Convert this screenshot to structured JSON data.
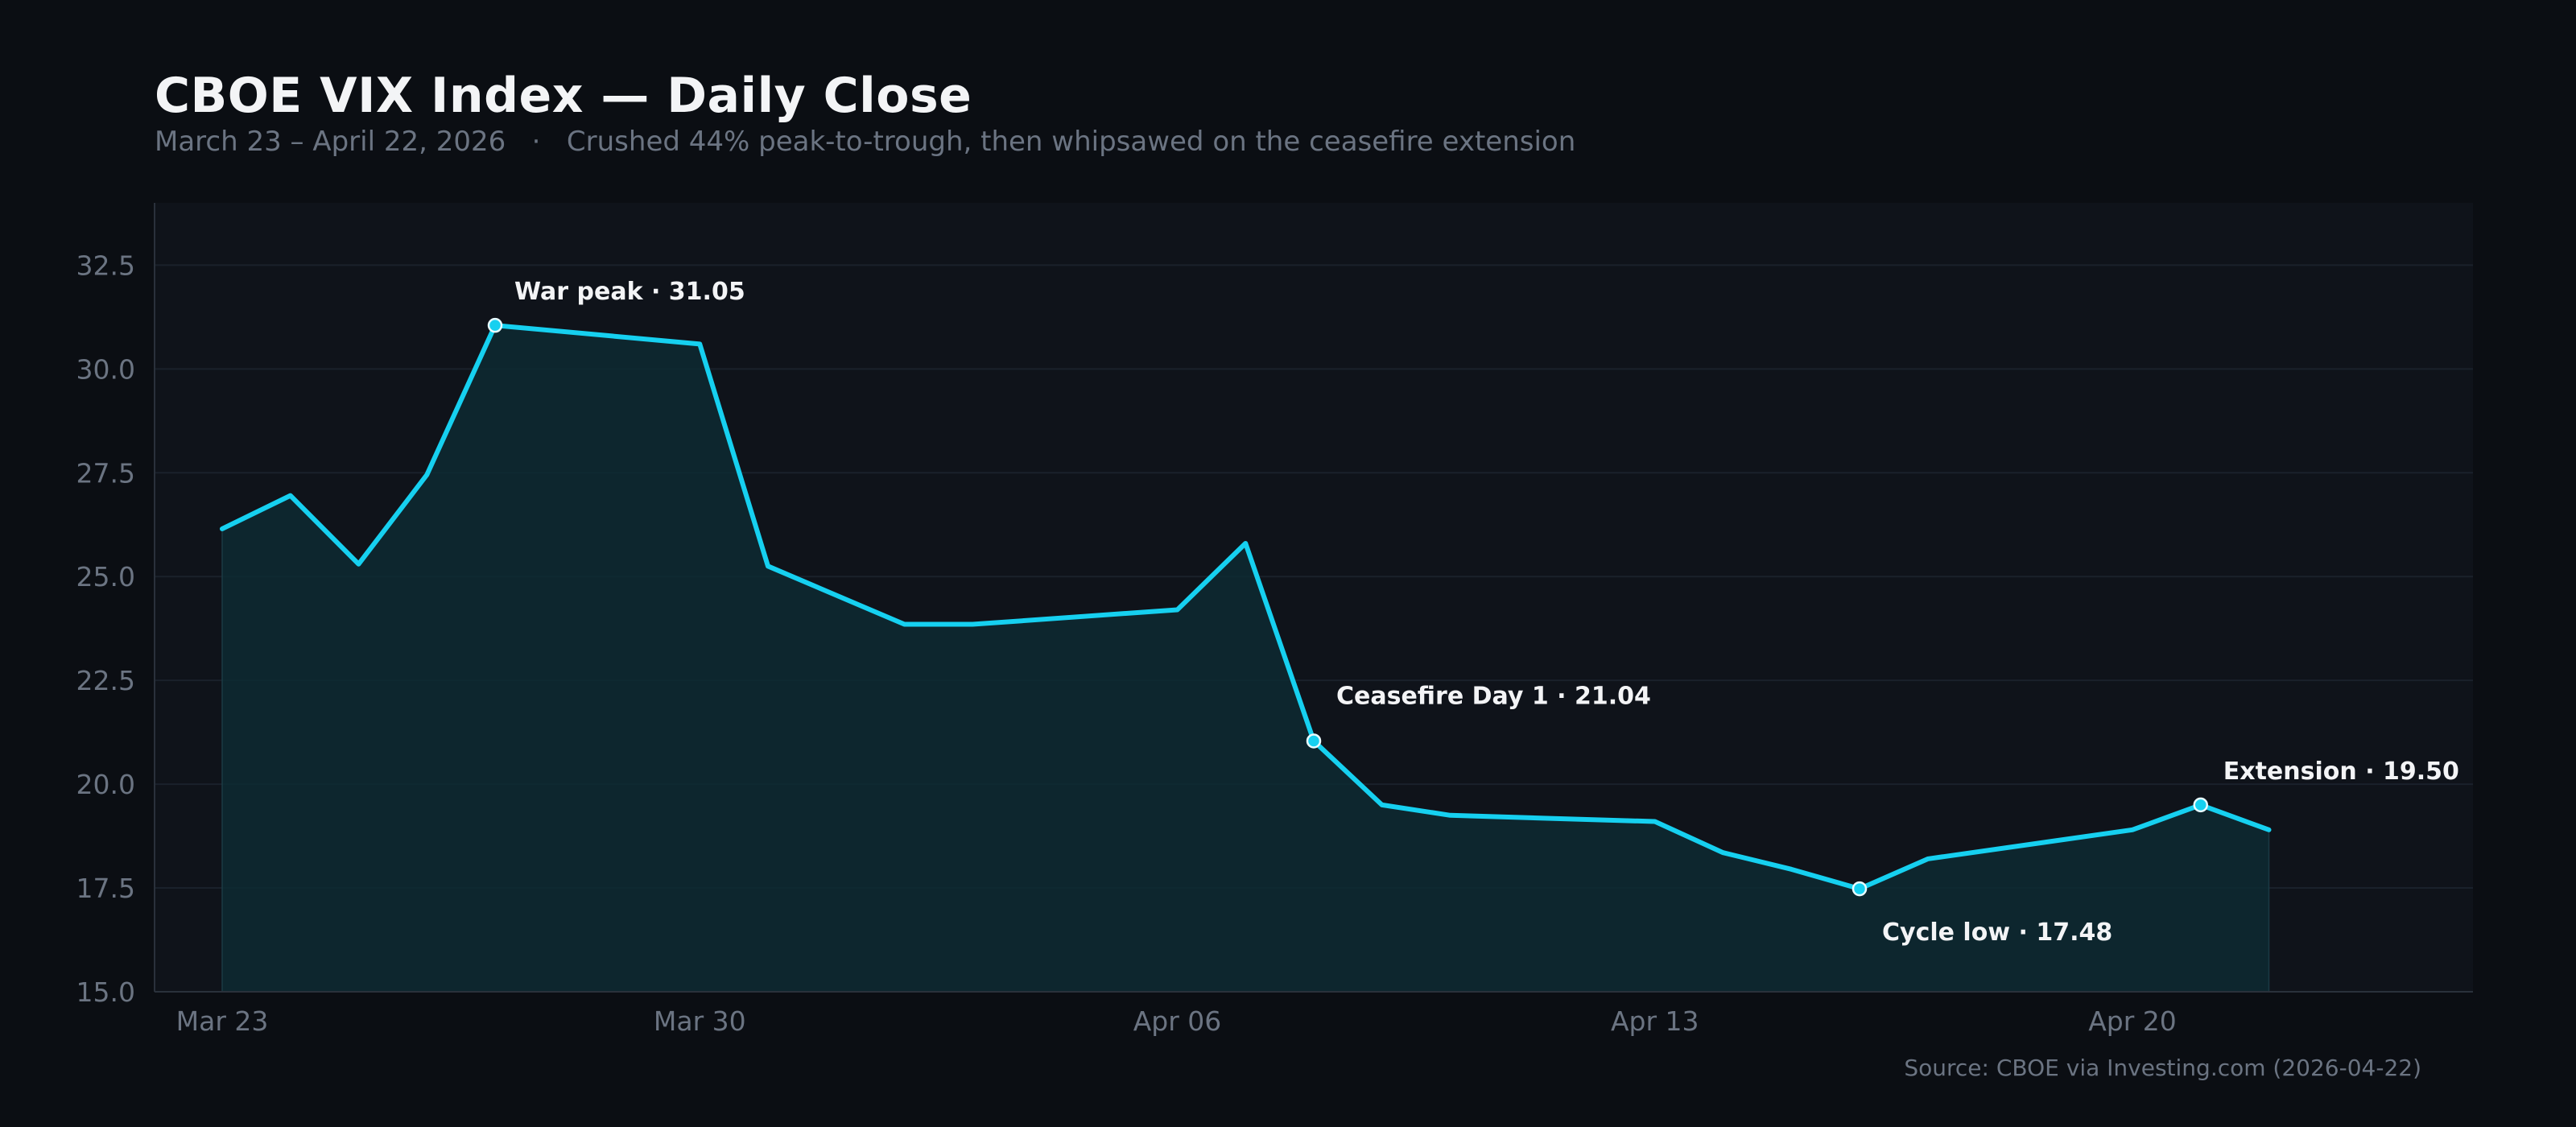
{
  "header": {
    "title": "CBOE VIX Index — Daily Close",
    "subtitle": "March 23 – April 22, 2026   ·   Crushed 44% peak-to-trough, then whipsawed on the ceasefire extension"
  },
  "footer": {
    "source": "Source: CBOE via Investing.com (2026-04-22)"
  },
  "colors": {
    "background": "#0b0e13",
    "plot_background": "#0f131a",
    "line": "#16d0f0",
    "fill": "#0d2a33",
    "grid": "#1a212b",
    "tick_text": "#6b7482",
    "annotation_text": "#f3f4f6"
  },
  "chart_data": {
    "type": "area",
    "title": "CBOE VIX Index — Daily Close",
    "xlabel": "",
    "ylabel": "",
    "ylim": [
      15.0,
      34.0
    ],
    "xlim": [
      "2026-03-23",
      "2026-04-25"
    ],
    "grid": true,
    "yticks": [
      15.0,
      17.5,
      20.0,
      22.5,
      25.0,
      27.5,
      30.0,
      32.5
    ],
    "ytick_labels": [
      "15.0",
      "17.5",
      "20.0",
      "22.5",
      "25.0",
      "27.5",
      "30.0",
      "32.5"
    ],
    "xticks": [
      "2026-03-23",
      "2026-03-30",
      "2026-04-06",
      "2026-04-13",
      "2026-04-20"
    ],
    "xtick_labels": [
      "Mar 23",
      "Mar 30",
      "Apr 06",
      "Apr 13",
      "Apr 20"
    ],
    "series": [
      {
        "x": [
          "2026-03-23",
          "2026-03-24",
          "2026-03-25",
          "2026-03-26",
          "2026-03-27",
          "2026-03-30",
          "2026-03-31",
          "2026-04-02",
          "2026-04-03",
          "2026-04-06",
          "2026-04-07",
          "2026-04-08",
          "2026-04-09",
          "2026-04-10",
          "2026-04-13",
          "2026-04-14",
          "2026-04-15",
          "2026-04-16",
          "2026-04-17",
          "2026-04-20",
          "2026-04-21",
          "2026-04-22"
        ],
        "y": [
          26.15,
          26.95,
          25.3,
          27.45,
          31.05,
          30.6,
          25.25,
          23.85,
          23.85,
          24.2,
          25.8,
          21.04,
          19.5,
          19.25,
          19.1,
          18.35,
          17.95,
          17.48,
          18.2,
          18.9,
          19.5,
          18.9
        ]
      }
    ],
    "annotations": [
      {
        "x": "2026-03-27",
        "y": 31.05,
        "label": "War peak · 31.05",
        "position": "above-right"
      },
      {
        "x": "2026-04-08",
        "y": 21.04,
        "label": "Ceasefire Day 1 · 21.04",
        "position": "above-right"
      },
      {
        "x": "2026-04-16",
        "y": 17.48,
        "label": "Cycle low · 17.48",
        "position": "below-right"
      },
      {
        "x": "2026-04-21",
        "y": 19.5,
        "label": "Extension · 19.50",
        "position": "above-right"
      }
    ]
  }
}
